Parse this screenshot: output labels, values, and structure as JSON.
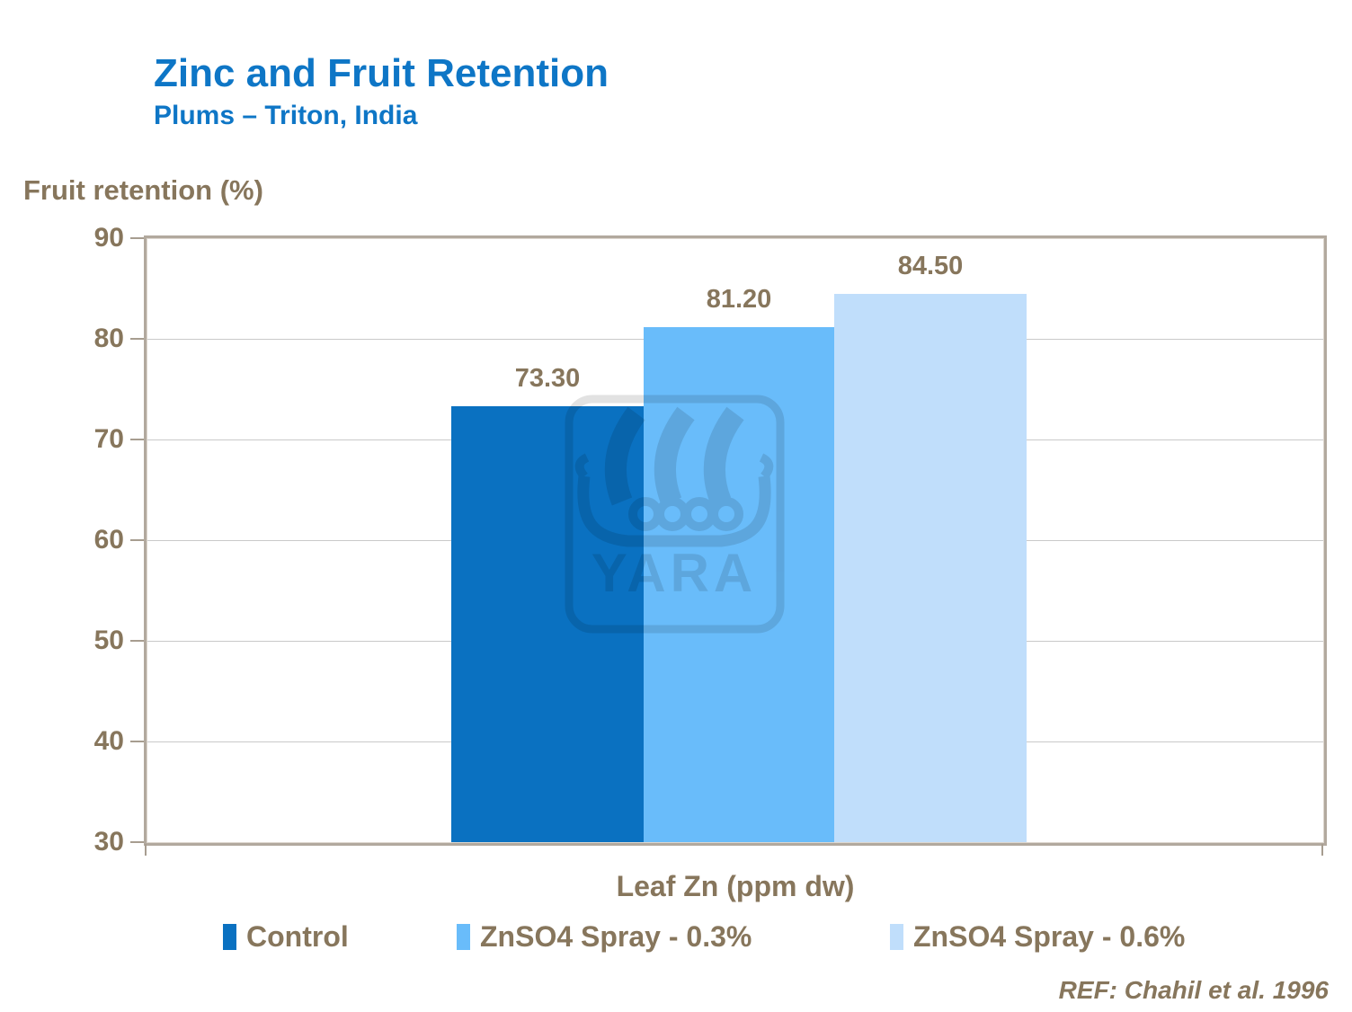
{
  "slide": {
    "title": "Zinc and Fruit Retention",
    "subtitle": "Plums – Triton, India",
    "reference": "REF: Chahil et al. 1996"
  },
  "watermark": {
    "name": "yara-viking-ship-logo",
    "text": "YARA"
  },
  "style": {
    "title_color": "#0e76c6",
    "label_color": "#87765c",
    "gridline_color": "#c9c9c9",
    "plot_border_color": "#b2a99e",
    "background": "#ffffff"
  },
  "chart_data": {
    "type": "bar",
    "xlabel": "Leaf Zn (ppm dw)",
    "ylabel": "Fruit retention (%)",
    "ylim": [
      30,
      90
    ],
    "yticks": [
      90,
      80,
      70,
      60,
      50,
      40,
      30
    ],
    "grid": true,
    "legend_position": "bottom",
    "categories": [
      ""
    ],
    "series": [
      {
        "name": "Control",
        "value": 73.3,
        "label": "73.30",
        "color": "#0a71c1"
      },
      {
        "name": "ZnSO4 Spray - 0.3%",
        "value": 81.2,
        "label": "81.20",
        "color": "#69bcfa"
      },
      {
        "name": "ZnSO4 Spray - 0.6%",
        "value": 84.5,
        "label": "84.50",
        "color": "#c0defb"
      }
    ]
  }
}
